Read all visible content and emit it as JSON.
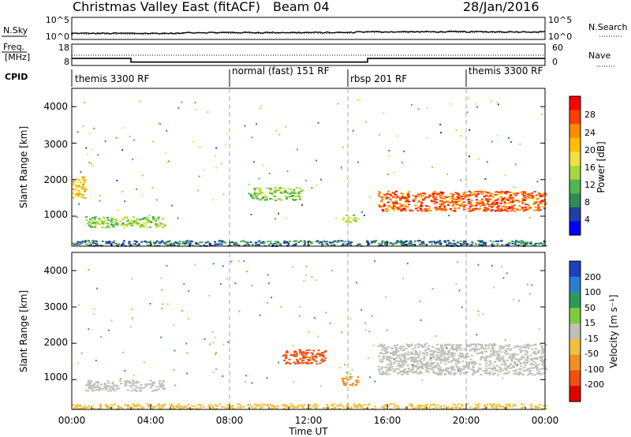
{
  "header": {
    "title": "Christmas Valley East (fitACF)",
    "beam": "Beam 04",
    "date": "28/Jan/2016"
  },
  "nsky_panel": {
    "left_label": "N.Sky",
    "ticks_left": [
      "10^5",
      "10^0"
    ],
    "right_label": "N.Search",
    "ticks_right": [
      "10^5",
      "10^0"
    ]
  },
  "freq_panel": {
    "left_label_1": "Freq.",
    "left_label_2": "[MHz]",
    "ticks_left": [
      "18",
      "8"
    ],
    "right_label": "Nave",
    "ticks_right": [
      "60",
      "0"
    ]
  },
  "cpid_label": "CPID",
  "cpid_segments": [
    {
      "label": "themis 3300 RF",
      "start": "00:00",
      "end": "08:00"
    },
    {
      "label": "normal (fast) 151 RF",
      "start": "08:00",
      "end": "14:00"
    },
    {
      "label": "rbsp 201 RF",
      "start": "14:00",
      "end": "20:00"
    },
    {
      "label": "themis 3300 RF",
      "start": "20:00",
      "end": "00:00"
    }
  ],
  "x_axis": {
    "label": "Time UT",
    "ticks": [
      "00:00",
      "04:00",
      "08:00",
      "12:00",
      "16:00",
      "20:00",
      "00:00"
    ]
  },
  "power_panel": {
    "ylabel": "Slant Range [km]",
    "yticks": [
      "4000",
      "3000",
      "2000",
      "1000"
    ],
    "colorbar_label": "Power [dB]",
    "colorbar_ticks": [
      "28",
      "24",
      "20",
      "16",
      "12",
      "8",
      "4"
    ],
    "colorbar_colors": [
      "#ff0000",
      "#ff4000",
      "#ff8c00",
      "#ffc000",
      "#f0e040",
      "#a8d840",
      "#50b850",
      "#2e8b57",
      "#2040a0",
      "#0000ff"
    ]
  },
  "velocity_panel": {
    "ylabel": "Slant Range [km]",
    "yticks": [
      "4000",
      "3000",
      "2000",
      "1000"
    ],
    "colorbar_label": "Velocity [m s⁻¹]",
    "colorbar_ticks": [
      "200",
      "100",
      "50",
      "15",
      "-15",
      "-50",
      "-100",
      "-200"
    ],
    "colorbar_colors": [
      "#1f3fbf",
      "#2a7fd0",
      "#2e9a5a",
      "#7fcc3a",
      "#c0c0b8",
      "#f0c040",
      "#f09020",
      "#f05010",
      "#e00000"
    ]
  },
  "chart_data": {
    "type": "heatmap",
    "x_range": [
      "00:00",
      "24:00"
    ],
    "y_range_km": [
      180,
      4500
    ],
    "frequency_mhz": [
      {
        "start": "00:00",
        "end": "03:00",
        "value": 11
      },
      {
        "start": "03:00",
        "end": "15:00",
        "value": 9
      },
      {
        "start": "15:00",
        "end": "24:00",
        "value": 11
      }
    ],
    "power_features": [
      {
        "time_range": [
          "00:00",
          "00:40"
        ],
        "range_km": [
          1500,
          2100
        ],
        "power_db": 20
      },
      {
        "time_range": [
          "00:40",
          "04:40"
        ],
        "range_km": [
          700,
          1000
        ],
        "power_db": 14
      },
      {
        "time_range": [
          "09:00",
          "11:40"
        ],
        "range_km": [
          1450,
          1800
        ],
        "power_db": 14
      },
      {
        "time_range": [
          "13:40",
          "14:30"
        ],
        "range_km": [
          850,
          1050
        ],
        "power_db": 16
      },
      {
        "time_range": [
          "15:30",
          "24:00"
        ],
        "range_km": [
          1150,
          1700
        ],
        "power_db": 26
      },
      {
        "time_range": [
          "00:00",
          "24:00"
        ],
        "range_km": [
          200,
          350
        ],
        "power_db": 8
      }
    ],
    "velocity_features": [
      {
        "time_range": [
          "00:40",
          "04:40"
        ],
        "range_km": [
          700,
          1000
        ],
        "velocity": 10
      },
      {
        "time_range": [
          "10:40",
          "12:50"
        ],
        "range_km": [
          1450,
          1850
        ],
        "velocity": -180
      },
      {
        "time_range": [
          "13:40",
          "14:30"
        ],
        "range_km": [
          850,
          1100
        ],
        "velocity": -70
      },
      {
        "time_range": [
          "15:30",
          "24:00"
        ],
        "range_km": [
          1150,
          2000
        ],
        "velocity": -5
      },
      {
        "time_range": [
          "00:00",
          "24:00"
        ],
        "range_km": [
          200,
          350
        ],
        "velocity": -40
      }
    ]
  }
}
